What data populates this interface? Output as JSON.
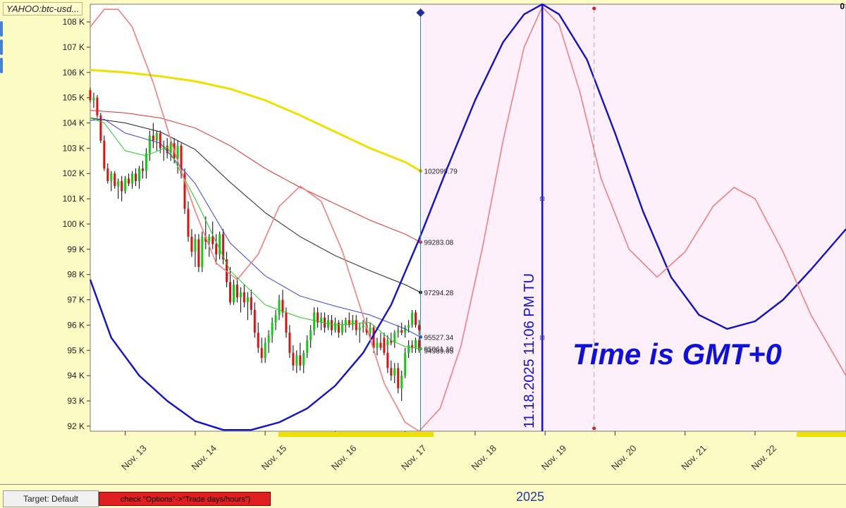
{
  "ticker": "YAHOO:btc-usd...",
  "corner_mark": "0",
  "year_label": "2025",
  "target_button": "Target: Default",
  "warning_text": "check \"Options\"->\"Trade days/hours\")",
  "timezone_note": "Time is GMT+0",
  "vertical_marker_label": "11.18.2025  11:06 PM TU",
  "colors": {
    "background": "#fdfbc4",
    "plot": "#ffffff",
    "future_zone": "#fdf0fb",
    "bull_candle": "#11cc11",
    "bear_candle": "#dd1111",
    "blue_cycle": "#1111cc",
    "red_cycle": "#f08080",
    "ma_yellow": "#f0e000",
    "ma_red": "#e03030",
    "ma_black": "#222222",
    "ma_blue": "#3344dd",
    "ma_green": "#22cc22",
    "annotation": "#1010dd"
  },
  "chart_data": {
    "type": "line",
    "title": "",
    "ylim": [
      91800,
      108700
    ],
    "xlim": [
      12.5,
      23.3
    ],
    "y_ticks": [
      92000,
      93000,
      94000,
      95000,
      96000,
      97000,
      98000,
      99000,
      100000,
      101000,
      102000,
      103000,
      104000,
      105000,
      106000,
      107000,
      108000
    ],
    "y_tick_labels": [
      "92 K",
      "93 K",
      "94 K",
      "95 K",
      "96 K",
      "97 K",
      "98 K",
      "99 K",
      "100 K",
      "101 K",
      "102 K",
      "103 K",
      "104 K",
      "105 K",
      "106 K",
      "107 K",
      "108 K"
    ],
    "x_ticks": [
      13,
      14,
      15,
      16,
      17,
      18,
      19,
      20,
      21,
      22
    ],
    "x_tick_labels": [
      "Nov. 13",
      "Nov. 14",
      "Nov. 15",
      "Nov. 16",
      "Nov. 17",
      "Nov. 18",
      "Nov. 19",
      "Nov. 20",
      "Nov. 21",
      "Nov. 22"
    ],
    "current_time_x": 17.22,
    "marker_x": 18.96,
    "dashed_marker_x": 19.7,
    "grid": false,
    "series": [
      {
        "name": "",
        "kind": "ma",
        "color": "#f0e000",
        "width": 3,
        "x": [
          12.5,
          13.0,
          13.5,
          14.0,
          14.5,
          15.0,
          15.5,
          16.0,
          16.5,
          17.0,
          17.22
        ],
        "y": [
          106100,
          106000,
          105850,
          105650,
          105350,
          104900,
          104300,
          103650,
          103000,
          102450,
          102100
        ],
        "end_label": "102099.79"
      },
      {
        "name": "",
        "kind": "ma",
        "color": "#e03030",
        "width": 1,
        "x": [
          12.5,
          13.0,
          13.5,
          14.0,
          14.5,
          15.0,
          15.5,
          16.0,
          16.5,
          17.0,
          17.22
        ],
        "y": [
          104500,
          104400,
          104200,
          103800,
          103100,
          102200,
          101450,
          100800,
          100150,
          99600,
          99283
        ],
        "end_label": "99283.08"
      },
      {
        "name": "",
        "kind": "ma",
        "color": "#222222",
        "width": 1,
        "x": [
          12.5,
          13.0,
          13.5,
          14.0,
          14.5,
          15.0,
          15.5,
          16.0,
          16.5,
          17.0,
          17.22
        ],
        "y": [
          104200,
          104000,
          103650,
          102950,
          101650,
          100450,
          99500,
          98750,
          98150,
          97600,
          97294
        ],
        "end_label": "97294.28"
      },
      {
        "name": "",
        "kind": "ma",
        "color": "#3344dd",
        "width": 1,
        "x": [
          12.5,
          12.7,
          13.0,
          13.5,
          14.0,
          14.5,
          15.0,
          15.5,
          16.0,
          16.5,
          17.0,
          17.22
        ],
        "y": [
          104100,
          104150,
          103600,
          103200,
          101600,
          99250,
          97950,
          97150,
          96750,
          96400,
          95850,
          95527
        ],
        "end_label": "95527.34"
      },
      {
        "name": "",
        "kind": "ma",
        "color": "#22cc22",
        "width": 1,
        "x": [
          12.5,
          12.7,
          13.0,
          13.3,
          13.6,
          14.0,
          14.5,
          15.0,
          15.5,
          16.0,
          16.5,
          16.8,
          17.0,
          17.22
        ],
        "y": [
          104200,
          104000,
          102900,
          102700,
          103050,
          101000,
          98150,
          96800,
          96300,
          96000,
          96100,
          95400,
          95150,
          95061
        ],
        "end_label": "95061.10"
      },
      {
        "name": "",
        "kind": "cycle",
        "color": "#1111cc",
        "width": 2.4,
        "x": [
          12.5,
          12.8,
          13.2,
          13.6,
          14.0,
          14.4,
          14.8,
          15.2,
          15.6,
          16.0,
          16.4,
          16.8,
          17.2,
          17.6,
          18.0,
          18.4,
          18.7,
          18.96,
          19.2,
          19.6,
          20.0,
          20.4,
          20.8,
          21.2,
          21.6,
          22.0,
          22.4,
          22.8,
          23.3
        ],
        "y": [
          97800,
          95500,
          94000,
          93000,
          92200,
          91850,
          91850,
          92150,
          92700,
          93600,
          94900,
          96800,
          99400,
          102200,
          104900,
          107200,
          108300,
          108700,
          108300,
          106500,
          103600,
          100500,
          97900,
          96400,
          95850,
          96150,
          97000,
          98200,
          99800
        ]
      },
      {
        "name": "",
        "kind": "cycle",
        "color": "#f08080",
        "width": 1.6,
        "x": [
          12.5,
          12.7,
          12.9,
          13.1,
          13.4,
          13.7,
          14.0,
          14.3,
          14.6,
          14.9,
          15.2,
          15.5,
          15.8,
          16.1,
          16.4,
          16.7,
          17.0,
          17.2,
          17.5,
          17.8,
          18.1,
          18.4,
          18.7,
          18.96,
          19.2,
          19.5,
          19.8,
          20.2,
          20.6,
          21.0,
          21.4,
          21.7,
          22.0,
          22.4,
          22.8,
          23.3
        ],
        "y": [
          107800,
          108500,
          108500,
          107800,
          105600,
          102900,
          100500,
          98450,
          97800,
          98800,
          100700,
          101500,
          100900,
          98950,
          96350,
          93700,
          92150,
          91800,
          92700,
          95200,
          99000,
          103300,
          107000,
          108600,
          107900,
          105200,
          101800,
          99000,
          97900,
          98900,
          100700,
          101450,
          101000,
          98900,
          96400,
          94000
        ]
      }
    ],
    "candles": [
      [
        12.5,
        105300,
        105400,
        104800,
        104900
      ],
      [
        12.55,
        104900,
        105200,
        104600,
        105000
      ],
      [
        12.6,
        105000,
        105100,
        104200,
        104300
      ],
      [
        12.65,
        104300,
        104400,
        103200,
        103300
      ],
      [
        12.7,
        103300,
        103500,
        102100,
        102200
      ],
      [
        12.75,
        102200,
        102400,
        101600,
        101700
      ],
      [
        12.8,
        101700,
        102100,
        101300,
        102000
      ],
      [
        12.85,
        102000,
        102100,
        101400,
        101500
      ],
      [
        12.9,
        101500,
        101800,
        101000,
        101700
      ],
      [
        12.95,
        101700,
        101900,
        100900,
        101300
      ],
      [
        13.0,
        101300,
        101900,
        101200,
        101800
      ],
      [
        13.05,
        101800,
        102000,
        101500,
        101600
      ],
      [
        13.1,
        101600,
        102100,
        101400,
        102000
      ],
      [
        13.15,
        102000,
        102200,
        101500,
        101700
      ],
      [
        13.2,
        101700,
        102300,
        101400,
        102200
      ],
      [
        13.25,
        102200,
        102500,
        101800,
        102100
      ],
      [
        13.3,
        102100,
        103000,
        101800,
        102800
      ],
      [
        13.35,
        102800,
        103700,
        102500,
        103500
      ],
      [
        13.4,
        103500,
        104000,
        103000,
        103300
      ],
      [
        13.45,
        103300,
        103700,
        102900,
        103600
      ],
      [
        13.5,
        103600,
        103700,
        102800,
        103000
      ],
      [
        13.55,
        103000,
        103300,
        102500,
        103100
      ],
      [
        13.6,
        103100,
        103400,
        102600,
        102800
      ],
      [
        13.65,
        102800,
        103300,
        102500,
        103200
      ],
      [
        13.7,
        103200,
        103400,
        102400,
        102600
      ],
      [
        13.75,
        102600,
        103300,
        102000,
        103100
      ],
      [
        13.8,
        103100,
        103200,
        101800,
        102000
      ],
      [
        13.85,
        102000,
        102200,
        100400,
        100600
      ],
      [
        13.9,
        100600,
        100900,
        99300,
        99500
      ],
      [
        13.95,
        99500,
        99800,
        98700,
        98900
      ],
      [
        14.0,
        98900,
        99600,
        98300,
        99400
      ],
      [
        14.05,
        99400,
        99600,
        98100,
        98300
      ],
      [
        14.1,
        98300,
        99700,
        98100,
        99500
      ],
      [
        14.15,
        99500,
        100300,
        99000,
        99300
      ],
      [
        14.2,
        99300,
        99600,
        98700,
        99500
      ],
      [
        14.25,
        99500,
        100100,
        99000,
        99200
      ],
      [
        14.3,
        99200,
        99600,
        98400,
        98800
      ],
      [
        14.35,
        98800,
        99700,
        98600,
        99600
      ],
      [
        14.4,
        99600,
        99800,
        98400,
        98600
      ],
      [
        14.45,
        98600,
        98900,
        97500,
        97700
      ],
      [
        14.5,
        97700,
        98300,
        96800,
        96900
      ],
      [
        14.55,
        96900,
        97800,
        96800,
        97600
      ],
      [
        14.6,
        97600,
        97900,
        96900,
        97100
      ],
      [
        14.65,
        97100,
        97500,
        96500,
        97300
      ],
      [
        14.7,
        97300,
        97600,
        96700,
        96900
      ],
      [
        14.75,
        96900,
        97300,
        96200,
        97100
      ],
      [
        14.8,
        97100,
        97400,
        96400,
        96600
      ],
      [
        14.85,
        96600,
        96900,
        95500,
        95700
      ],
      [
        14.9,
        95700,
        96100,
        94900,
        95100
      ],
      [
        14.95,
        95100,
        95500,
        94500,
        94700
      ],
      [
        15.0,
        94700,
        95500,
        94500,
        95300
      ],
      [
        15.05,
        95300,
        95800,
        94900,
        95600
      ],
      [
        15.1,
        95600,
        96300,
        95300,
        96100
      ],
      [
        15.15,
        96100,
        96600,
        95800,
        96400
      ],
      [
        15.2,
        96400,
        97200,
        96200,
        97000
      ],
      [
        15.25,
        97000,
        97400,
        96300,
        96500
      ],
      [
        15.3,
        96500,
        96700,
        95500,
        95700
      ],
      [
        15.35,
        95700,
        96000,
        94700,
        94900
      ],
      [
        15.4,
        94900,
        95200,
        94200,
        94400
      ],
      [
        15.45,
        94400,
        95000,
        94100,
        94800
      ],
      [
        15.5,
        94800,
        95300,
        94200,
        94400
      ],
      [
        15.55,
        94400,
        95000,
        94100,
        94900
      ],
      [
        15.6,
        94900,
        95600,
        94700,
        95400
      ],
      [
        15.65,
        95400,
        96000,
        95100,
        95800
      ],
      [
        15.7,
        95800,
        96700,
        95600,
        96500
      ],
      [
        15.75,
        96500,
        96700,
        95900,
        96100
      ],
      [
        15.8,
        96100,
        96500,
        95800,
        96300
      ],
      [
        15.85,
        96300,
        96500,
        95700,
        95900
      ],
      [
        15.9,
        95900,
        96400,
        95800,
        96200
      ],
      [
        15.95,
        96200,
        96400,
        95600,
        95800
      ],
      [
        16.0,
        95800,
        96300,
        95700,
        96100
      ],
      [
        16.05,
        96100,
        96200,
        95500,
        95700
      ],
      [
        16.1,
        95700,
        96200,
        95600,
        96000
      ],
      [
        16.15,
        96000,
        96300,
        95700,
        96200
      ],
      [
        16.2,
        96200,
        96500,
        95900,
        96000
      ],
      [
        16.25,
        96000,
        96400,
        95800,
        96200
      ],
      [
        16.3,
        96200,
        96400,
        95600,
        95800
      ],
      [
        16.35,
        95800,
        96100,
        95300,
        95900
      ],
      [
        16.4,
        95900,
        96200,
        95700,
        96000
      ],
      [
        16.45,
        96000,
        96300,
        95600,
        95700
      ],
      [
        16.5,
        95700,
        96100,
        95400,
        95900
      ],
      [
        16.55,
        95900,
        96000,
        94900,
        95100
      ],
      [
        16.6,
        95100,
        95500,
        94800,
        95300
      ],
      [
        16.65,
        95300,
        95700,
        95000,
        95100
      ],
      [
        16.7,
        95100,
        95300,
        94900,
        95200
      ],
      [
        16.75,
        95200,
        95600,
        95100,
        95400
      ],
      [
        16.8,
        95400,
        95700,
        95200,
        95300
      ],
      [
        16.85,
        95300,
        95800,
        95100,
        95700
      ],
      [
        16.9,
        95700,
        96000,
        95500,
        95800
      ],
      [
        16.95,
        95800,
        96100,
        95600,
        95700
      ],
      [
        17.0,
        95700,
        96000,
        95500,
        95900
      ],
      [
        17.05,
        95900,
        96200,
        95700,
        96000
      ],
      [
        17.1,
        96000,
        96600,
        95900,
        96500
      ],
      [
        17.15,
        96500,
        96600,
        95900,
        96000
      ],
      [
        17.2,
        96000,
        96200,
        95600,
        95800
      ]
    ],
    "candles_tail": [
      [
        16.7,
        95500,
        95700,
        94800,
        94900
      ],
      [
        16.75,
        94900,
        95100,
        94100,
        94300
      ],
      [
        16.8,
        94300,
        94600,
        93800,
        94000
      ],
      [
        16.85,
        94000,
        94500,
        93700,
        94300
      ],
      [
        16.9,
        94300,
        94500,
        93300,
        93500
      ],
      [
        16.95,
        93500,
        94200,
        93000,
        94000
      ],
      [
        17.0,
        94000,
        95100,
        93900,
        94900
      ],
      [
        17.05,
        94900,
        95400,
        94700,
        95200
      ],
      [
        17.1,
        95200,
        95400,
        94900,
        95100
      ],
      [
        17.15,
        95100,
        95500,
        94900,
        95400
      ],
      [
        17.2,
        95400,
        95500,
        94900,
        95000
      ]
    ],
    "price_label": "94989.05"
  }
}
